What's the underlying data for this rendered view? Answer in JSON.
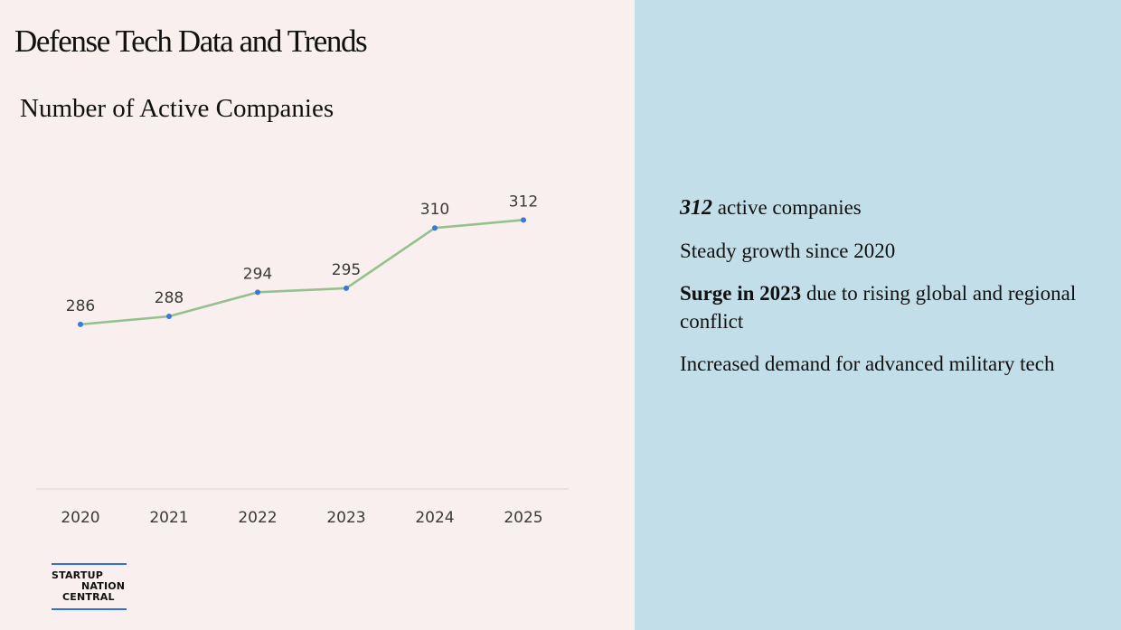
{
  "page_title": "Defense Tech Data and Trends",
  "colors": {
    "left_panel_bg": "#f8efee",
    "right_panel_bg": "#c2dee8",
    "line": "#96c08e",
    "marker": "#3b78d8",
    "logo_rule": "#2f6fe0"
  },
  "chart_data": {
    "type": "line",
    "title": "Number of Active Companies",
    "xlabel": "",
    "ylabel": "",
    "categories": [
      "2020",
      "2021",
      "2022",
      "2023",
      "2024",
      "2025"
    ],
    "values": [
      286,
      288,
      294,
      295,
      310,
      312
    ],
    "data_labels": true,
    "ylim": [
      270,
      315
    ],
    "grid": false,
    "legend": "none"
  },
  "insights": {
    "item1": {
      "number": "312",
      "text": " active companies"
    },
    "item2": {
      "text": "Steady growth since 2020"
    },
    "item3": {
      "bold": "Surge in 2023",
      "text": " due to rising global and regional conflict"
    },
    "item4": {
      "text": "Increased demand for advanced military tech"
    }
  },
  "logo": {
    "line1": "STARTUP",
    "line2": "NATION",
    "line3": "CENTRAL"
  }
}
